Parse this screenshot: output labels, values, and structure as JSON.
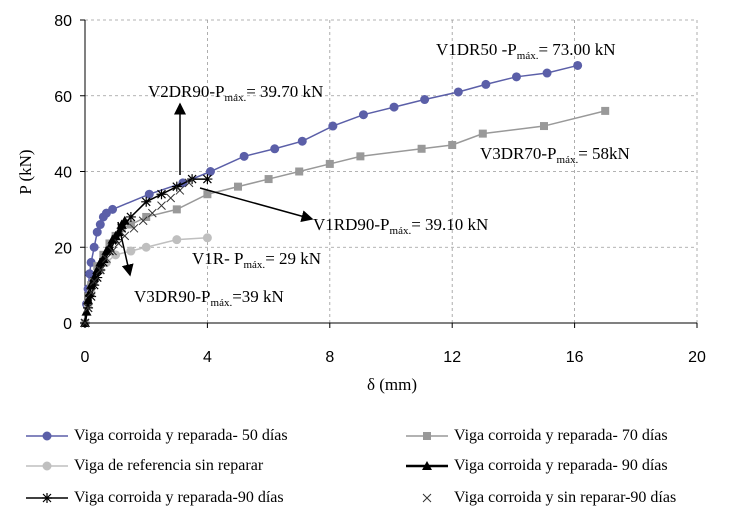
{
  "chart_data": {
    "type": "line",
    "xlabel": "δ (mm)",
    "ylabel": "P (kN)",
    "xlim": [
      0,
      20
    ],
    "ylim": [
      0,
      80
    ],
    "x_ticks": [
      "0",
      "4",
      "8",
      "12",
      "16",
      "20"
    ],
    "y_ticks": [
      "0",
      "20",
      "40",
      "60",
      "80"
    ],
    "grid": "dashed",
    "legend_position": "bottom",
    "series": [
      {
        "name": "Viga corroida y reparada- 50 días",
        "color": "#5B5FA8",
        "marker": "circle",
        "x": [
          0,
          0.05,
          0.1,
          0.15,
          0.2,
          0.3,
          0.4,
          0.5,
          0.6,
          0.7,
          0.9,
          2.1,
          3.2,
          4.1,
          5.2,
          6.2,
          7.1,
          8.1,
          9.1,
          10.1,
          11.1,
          12.2,
          13.1,
          14.1,
          15.1,
          16.1
        ],
        "y": [
          0,
          5,
          9,
          13,
          16,
          20,
          24,
          26,
          28,
          29,
          30,
          34,
          37,
          40,
          44,
          46,
          48,
          52,
          55,
          57,
          59,
          61,
          63,
          65,
          66,
          68
        ]
      },
      {
        "name": "Viga corroida y reparada- 70 días",
        "color": "#999999",
        "marker": "square",
        "x": [
          0,
          0.1,
          0.2,
          0.4,
          0.6,
          0.8,
          1.0,
          1.2,
          1.5,
          2.0,
          3.0,
          4.0,
          5.0,
          6.0,
          7.0,
          8.0,
          9.0,
          11.0,
          12.0,
          13.0,
          15.0,
          17.0
        ],
        "y": [
          0,
          5,
          10,
          15,
          18,
          21,
          23,
          25,
          26,
          28,
          30,
          34,
          36,
          38,
          40,
          42,
          44,
          46,
          47,
          50,
          52,
          56
        ]
      },
      {
        "name": "Viga de referencia sin reparar",
        "color": "#BFBFBF",
        "marker": "circle",
        "x": [
          0,
          0.1,
          0.2,
          0.3,
          0.5,
          0.7,
          1.0,
          1.5,
          2.0,
          3.0,
          4.0
        ],
        "y": [
          0,
          5,
          8,
          11,
          14,
          16,
          18,
          19,
          20,
          22,
          22.5
        ]
      },
      {
        "name": "Viga corroida y reparada- 90 días",
        "color": "#000000",
        "marker": "triangle",
        "x": [
          0,
          0.05,
          0.1,
          0.15,
          0.2,
          0.3,
          0.4,
          0.5,
          0.6,
          0.7,
          0.8,
          0.9,
          1.0,
          1.1,
          1.2,
          1.3
        ],
        "y": [
          0,
          3,
          6,
          8,
          10,
          12,
          14,
          16,
          17,
          19,
          20,
          22,
          23,
          24,
          26,
          27
        ]
      },
      {
        "name": "Viga corroida y reparada-90 días",
        "color": "#000000",
        "marker": "star",
        "x": [
          0,
          0.1,
          0.2,
          0.3,
          0.4,
          0.5,
          0.6,
          0.8,
          1.0,
          1.2,
          1.5,
          2.0,
          2.5,
          3.0,
          3.5,
          4.0
        ],
        "y": [
          0,
          4,
          7,
          10,
          12,
          14,
          16,
          19,
          22,
          25,
          28,
          32,
          34,
          36,
          38,
          38
        ]
      },
      {
        "name": "Viga corroida y sin reparar-90 días",
        "color": "#333333",
        "marker": "x",
        "x": [
          0,
          0.1,
          0.2,
          0.3,
          0.5,
          0.7,
          0.9,
          1.1,
          1.3,
          1.6,
          1.9,
          2.2,
          2.5,
          2.8,
          3.1,
          3.4
        ],
        "y": [
          0,
          4,
          8,
          11,
          14,
          17,
          19,
          21,
          23,
          25,
          27,
          29,
          31,
          33,
          35,
          37
        ]
      }
    ],
    "annotations": [
      {
        "main": "V1DR50 -P",
        "sub": "máx.",
        "rest": "= 73.00 kN"
      },
      {
        "main": "V2DR90-P",
        "sub": "máx.",
        "rest": "= 39.70 kN"
      },
      {
        "main": "V3DR70-P",
        "sub": "máx.",
        "rest": "= 58kN"
      },
      {
        "main": "V1RD90-P",
        "sub": "máx.",
        "rest": "= 39.10 kN"
      },
      {
        "main": "V1R- P",
        "sub": "máx.",
        "rest": "= 29 kN"
      },
      {
        "main": "V3DR90-P",
        "sub": "máx.",
        "rest": "=39 kN"
      }
    ]
  }
}
